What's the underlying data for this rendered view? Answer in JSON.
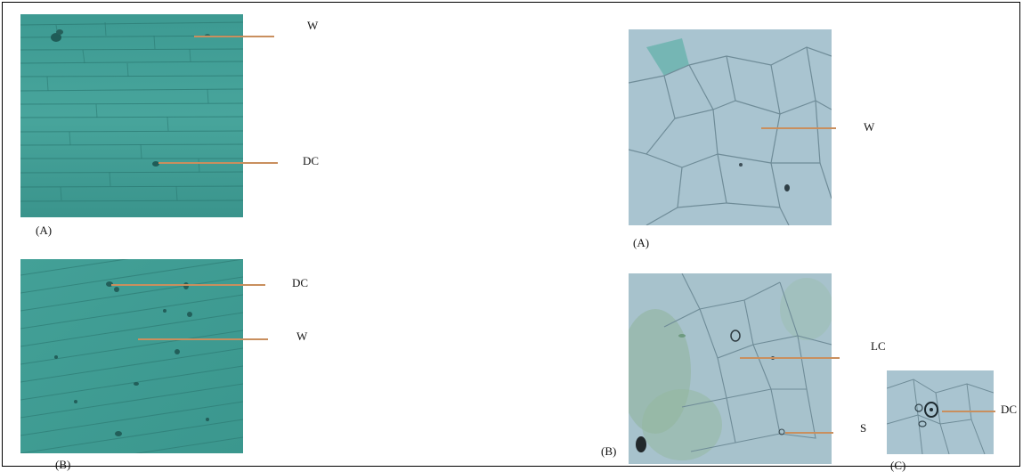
{
  "left_figure": {
    "panel_a": {
      "caption": "(A)",
      "label_w": "W",
      "label_dc": "DC"
    },
    "panel_b": {
      "caption": "(B)",
      "label_dc": "DC",
      "label_w": "W"
    }
  },
  "right_figure": {
    "panel_a": {
      "caption": "(A)",
      "label_w": "W"
    },
    "panel_b": {
      "caption": "(B)",
      "label_lc": "LC",
      "label_s": "S"
    },
    "panel_c": {
      "caption": "(C)",
      "label_dc": "DC"
    }
  },
  "colors": {
    "pointer_line": "#c98f5e",
    "teal_tissue": "#3f9c94",
    "pale_tissue": "#a9c4d0"
  }
}
